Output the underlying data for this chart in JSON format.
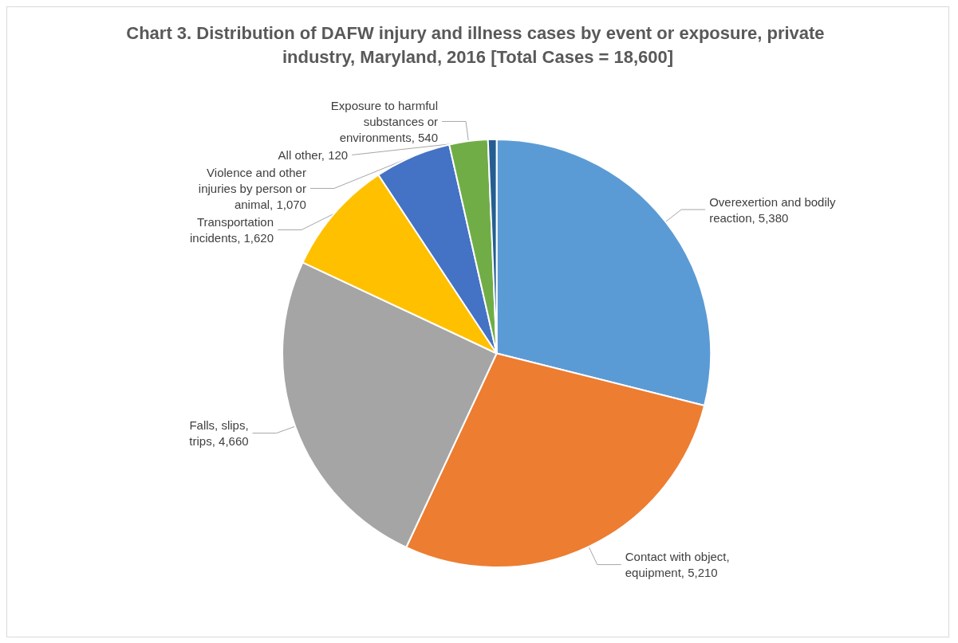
{
  "chart_data": {
    "type": "pie",
    "title": "Chart 3. Distribution of DAFW injury and illness cases by event or exposure, private industry, Maryland, 2016 [Total Cases = 18,600]",
    "categories": [
      "Overexertion and bodily reaction",
      "Contact with object, equipment",
      "Falls, slips, trips",
      "Transportation incidents",
      "Violence and other injuries by person or animal",
      "Exposure to harmful substances or environments",
      "All other"
    ],
    "values": [
      5380,
      5210,
      4660,
      1620,
      1070,
      540,
      120
    ],
    "value_labels": [
      "5,380",
      "5,210",
      "4,660",
      "1,620",
      "1,070",
      "540",
      "120"
    ],
    "colors": [
      "#5b9bd5",
      "#ed7d31",
      "#a5a5a5",
      "#ffc000",
      "#4472c4",
      "#70ad47",
      "#255e91"
    ],
    "legend": false
  }
}
